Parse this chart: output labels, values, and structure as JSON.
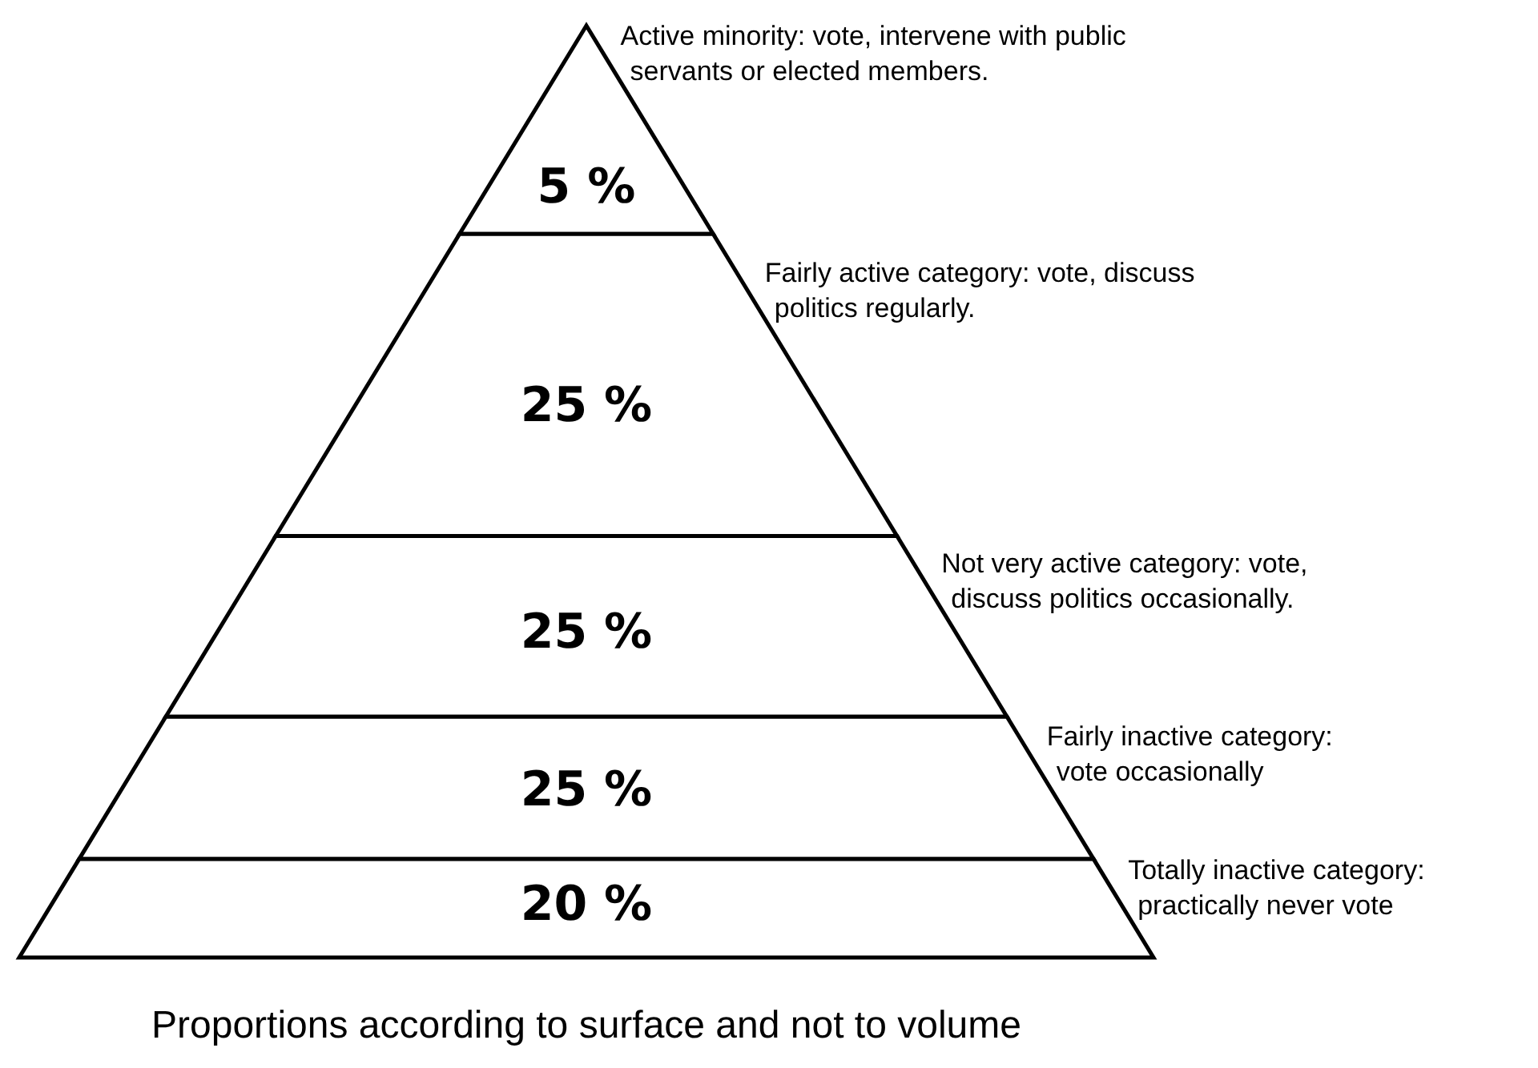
{
  "chart_data": {
    "type": "other",
    "categories": [
      "Active minority: vote, intervene with public\nservants or elected members.",
      "Fairly active category: vote, discuss\npolitics regularly.",
      "Not very active category: vote,\ndiscuss politics occasionally.",
      "Fairly inactive category:\nvote occasionally",
      "Totally inactive category:\npractically never vote"
    ],
    "values": [
      5,
      25,
      25,
      25,
      20
    ],
    "value_labels": [
      "5 %",
      "25 %",
      "25 %",
      "25 %",
      "20 %"
    ],
    "annotations": [
      "Proportions according to surface and not to volume"
    ]
  }
}
